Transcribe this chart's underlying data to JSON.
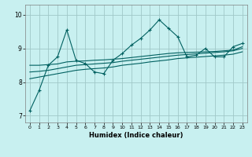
{
  "title": "",
  "xlabel": "Humidex (Indice chaleur)",
  "ylabel": "",
  "background_color": "#c8f0f0",
  "grid_color": "#a0c8c8",
  "line_color": "#006060",
  "xlim": [
    -0.5,
    23.5
  ],
  "ylim": [
    6.8,
    10.3
  ],
  "yticks": [
    7,
    8,
    9,
    10
  ],
  "xticks": [
    0,
    1,
    2,
    3,
    4,
    5,
    6,
    7,
    8,
    9,
    10,
    11,
    12,
    13,
    14,
    15,
    16,
    17,
    18,
    19,
    20,
    21,
    22,
    23
  ],
  "x": [
    0,
    1,
    2,
    3,
    4,
    5,
    6,
    7,
    8,
    9,
    10,
    11,
    12,
    13,
    14,
    15,
    16,
    17,
    18,
    19,
    20,
    21,
    22,
    23
  ],
  "series1": [
    7.15,
    7.75,
    8.5,
    8.75,
    9.55,
    8.65,
    8.55,
    8.3,
    8.25,
    8.65,
    8.85,
    9.1,
    9.3,
    9.55,
    9.85,
    9.6,
    9.35,
    8.75,
    8.8,
    9.0,
    8.75,
    8.75,
    9.05,
    9.15
  ],
  "series2": [
    8.5,
    8.5,
    8.52,
    8.54,
    8.6,
    8.62,
    8.63,
    8.65,
    8.66,
    8.68,
    8.7,
    8.73,
    8.76,
    8.79,
    8.82,
    8.85,
    8.87,
    8.88,
    8.89,
    8.9,
    8.91,
    8.93,
    8.95,
    9.05
  ],
  "series3": [
    8.3,
    8.32,
    8.35,
    8.4,
    8.45,
    8.5,
    8.52,
    8.54,
    8.56,
    8.58,
    8.62,
    8.65,
    8.68,
    8.71,
    8.74,
    8.77,
    8.8,
    8.82,
    8.84,
    8.86,
    8.88,
    8.9,
    8.93,
    9.0
  ],
  "series4": [
    8.1,
    8.15,
    8.2,
    8.25,
    8.3,
    8.35,
    8.38,
    8.4,
    8.42,
    8.45,
    8.5,
    8.53,
    8.56,
    8.6,
    8.63,
    8.66,
    8.7,
    8.72,
    8.74,
    8.76,
    8.78,
    8.8,
    8.83,
    8.9
  ]
}
